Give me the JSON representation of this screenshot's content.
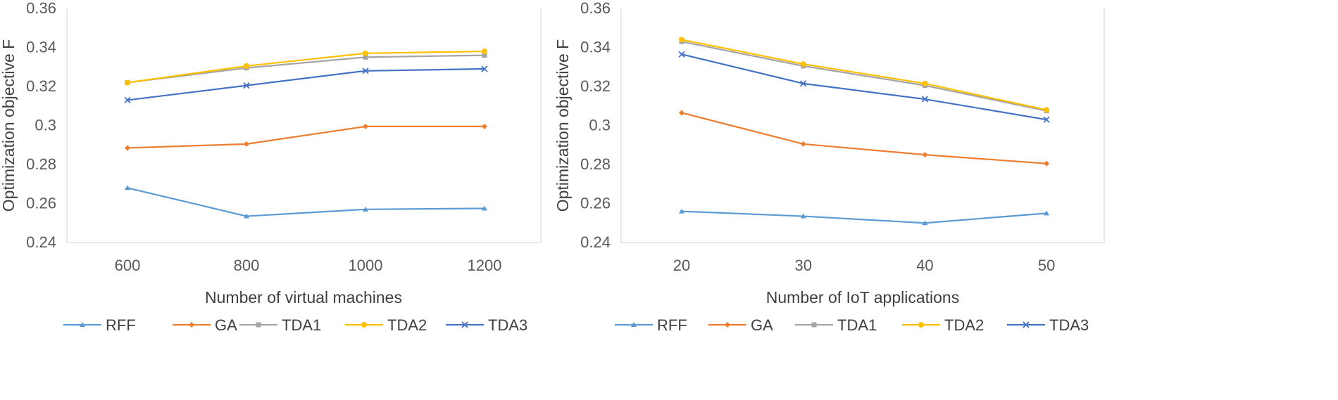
{
  "chart_data": [
    {
      "type": "line",
      "title": "",
      "xlabel": "Number of virtual machines",
      "ylabel": "Optimization objective F",
      "categories": [
        "600",
        "800",
        "1000",
        "1200"
      ],
      "ylim": [
        0.24,
        0.36
      ],
      "yticks": [
        0.24,
        0.26,
        0.28,
        0.3,
        0.32,
        0.34,
        0.36
      ],
      "ytick_labels": [
        "0.24",
        "0.26",
        "0.28",
        "0.3",
        "0.32",
        "0.34",
        "0.36"
      ],
      "legend_position": "bottom",
      "grid": false,
      "series": [
        {
          "name": "RFF",
          "color": "#5B9BD5",
          "marker": "triangle",
          "values": [
            0.268,
            0.2535,
            0.257,
            0.2575
          ]
        },
        {
          "name": "GA",
          "color": "#ED7D31",
          "marker": "diamond",
          "values": [
            0.2885,
            0.2905,
            0.2995,
            0.2995
          ]
        },
        {
          "name": "TDA1",
          "color": "#A5A5A5",
          "marker": "square",
          "values": [
            0.322,
            0.3295,
            0.335,
            0.336
          ]
        },
        {
          "name": "TDA2",
          "color": "#FFC000",
          "marker": "circle",
          "values": [
            0.322,
            0.3305,
            0.337,
            0.338
          ]
        },
        {
          "name": "TDA3",
          "color": "#4472C4",
          "marker": "x",
          "values": [
            0.313,
            0.3205,
            0.328,
            0.329
          ]
        }
      ]
    },
    {
      "type": "line",
      "title": "",
      "xlabel": "Number of IoT applications",
      "ylabel": "Optimization objective F",
      "categories": [
        "20",
        "30",
        "40",
        "50"
      ],
      "ylim": [
        0.24,
        0.36
      ],
      "yticks": [
        0.24,
        0.26,
        0.28,
        0.3,
        0.32,
        0.34,
        0.36
      ],
      "ytick_labels": [
        "0.24",
        "0.26",
        "0.28",
        "0.3",
        "0.32",
        "0.34",
        "0.36"
      ],
      "legend_position": "bottom",
      "grid": false,
      "series": [
        {
          "name": "RFF",
          "color": "#5B9BD5",
          "marker": "triangle",
          "values": [
            0.256,
            0.2535,
            0.25,
            0.255
          ]
        },
        {
          "name": "GA",
          "color": "#ED7D31",
          "marker": "diamond",
          "values": [
            0.3065,
            0.2905,
            0.285,
            0.2805
          ]
        },
        {
          "name": "TDA1",
          "color": "#A5A5A5",
          "marker": "square",
          "values": [
            0.343,
            0.3305,
            0.3205,
            0.3075
          ]
        },
        {
          "name": "TDA2",
          "color": "#FFC000",
          "marker": "circle",
          "values": [
            0.344,
            0.3315,
            0.3215,
            0.308
          ]
        },
        {
          "name": "TDA3",
          "color": "#4472C4",
          "marker": "x",
          "values": [
            0.3365,
            0.3215,
            0.3135,
            0.303
          ]
        }
      ]
    }
  ]
}
